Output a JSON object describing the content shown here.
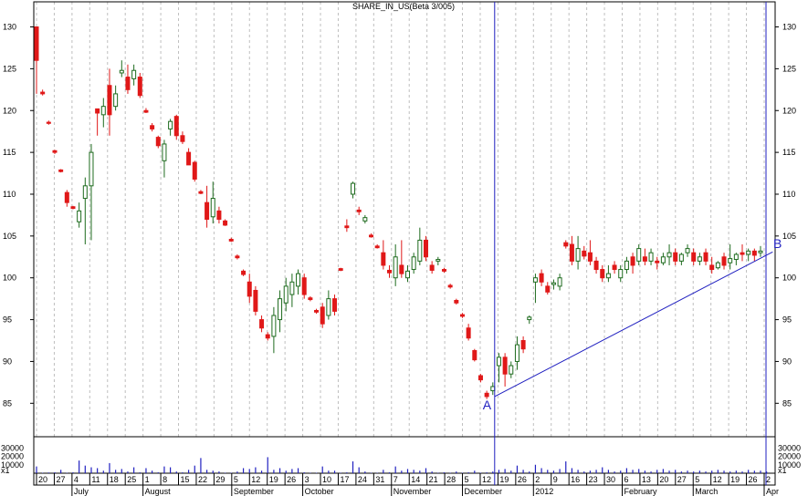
{
  "chart_data": {
    "type": "candlestick",
    "title": "SHARE_IN_US(Beta 3/005)",
    "colors": {
      "up": "#1e6b1e",
      "down": "#e01818",
      "grid": "#bfbfbf",
      "markers": "#2020c0",
      "volume": "#2020c0"
    },
    "price_ticks": [
      85,
      90,
      95,
      100,
      105,
      110,
      115,
      120,
      125,
      130
    ],
    "volume_ticks": [
      "30000",
      "20000",
      "10000",
      "x1"
    ],
    "ylim": [
      81,
      133
    ],
    "x_day_labels": [
      "20",
      "27",
      "4",
      "11",
      "18",
      "25",
      "1",
      "8",
      "15",
      "22",
      "29",
      "5",
      "12",
      "19",
      "26",
      "3",
      "10",
      "17",
      "24",
      "31",
      "7",
      "14",
      "21",
      "28",
      "5",
      "12",
      "19",
      "26",
      "2",
      "9",
      "16",
      "23",
      "30",
      "6",
      "13",
      "20",
      "27",
      "5",
      "12",
      "19",
      "26",
      "2"
    ],
    "x_month_labels": [
      "July",
      "August",
      "September",
      "October",
      "November",
      "December",
      "2012",
      "February",
      "March",
      "Apr"
    ],
    "markers": [
      {
        "label": "A"
      },
      {
        "label": "B"
      }
    ],
    "candles": [
      [
        130.0,
        122.0,
        130.0,
        126.0
      ],
      [
        122.5,
        121.8,
        122.2,
        122.0
      ],
      [
        118.8,
        118.3,
        118.6,
        118.5
      ],
      [
        115.3,
        114.8,
        115.2,
        115.0
      ],
      [
        113.0,
        112.6,
        112.9,
        112.7
      ],
      [
        110.5,
        108.5,
        110.2,
        109.0
      ],
      [
        108.6,
        108.2,
        108.5,
        108.3
      ],
      [
        109.0,
        106.0,
        106.7,
        108.0
      ],
      [
        112.0,
        104.0,
        109.5,
        111.0
      ],
      [
        116.0,
        104.5,
        111.0,
        115.0
      ],
      [
        120.0,
        117.0,
        120.2,
        119.7
      ],
      [
        121.5,
        118.0,
        119.5,
        120.5
      ],
      [
        125.0,
        117.0,
        123.0,
        119.5
      ],
      [
        123.0,
        120.0,
        120.5,
        122.0
      ],
      [
        126.0,
        124.0,
        124.5,
        124.8
      ],
      [
        125.5,
        122.0,
        124.0,
        122.5
      ],
      [
        125.5,
        123.0,
        123.8,
        124.8
      ],
      [
        124.5,
        121.5,
        124.0,
        121.8
      ],
      [
        120.3,
        119.7,
        120.0,
        119.8
      ],
      [
        118.5,
        117.5,
        118.2,
        117.8
      ],
      [
        117.0,
        115.5,
        116.8,
        115.8
      ],
      [
        116.5,
        112.0,
        114.0,
        116.0
      ],
      [
        119.0,
        117.0,
        117.8,
        118.7
      ],
      [
        119.5,
        116.5,
        119.3,
        117.0
      ],
      [
        117.5,
        116.0,
        117.0,
        116.3
      ],
      [
        115.5,
        113.5,
        115.0,
        113.5
      ],
      [
        114.0,
        111.5,
        113.8,
        111.8
      ],
      [
        110.5,
        110.0,
        110.3,
        110.1
      ],
      [
        111.0,
        106.0,
        109.0,
        107.0
      ],
      [
        111.5,
        106.5,
        107.3,
        109.5
      ],
      [
        108.5,
        106.5,
        108.0,
        107.0
      ],
      [
        107.0,
        106.2,
        106.8,
        106.3
      ],
      [
        104.8,
        104.3,
        104.6,
        104.4
      ],
      [
        102.8,
        102.2,
        102.6,
        102.4
      ],
      [
        101.0,
        100.2,
        100.8,
        100.4
      ],
      [
        100.5,
        97.0,
        99.5,
        97.8
      ],
      [
        99.0,
        95.5,
        98.5,
        96.0
      ],
      [
        95.5,
        93.5,
        95.0,
        94.0
      ],
      [
        93.5,
        92.5,
        93.2,
        92.8
      ],
      [
        96.5,
        91.0,
        93.0,
        95.5
      ],
      [
        98.5,
        93.5,
        95.0,
        97.5
      ],
      [
        100.0,
        96.0,
        97.0,
        99.0
      ],
      [
        100.5,
        96.5,
        98.0,
        99.5
      ],
      [
        101.0,
        98.0,
        99.0,
        100.5
      ],
      [
        100.5,
        97.5,
        100.0,
        98.0
      ],
      [
        97.8,
        97.2,
        97.6,
        97.4
      ],
      [
        96.3,
        95.7,
        96.1,
        95.9
      ],
      [
        97.0,
        94.0,
        96.5,
        94.5
      ],
      [
        98.5,
        95.0,
        95.5,
        97.5
      ],
      [
        98.0,
        95.5,
        97.5,
        96.0
      ],
      [
        101.2,
        100.8,
        101.1,
        100.9
      ],
      [
        107.0,
        105.5,
        106.2,
        106.0
      ],
      [
        111.5,
        109.5,
        110.0,
        111.3
      ],
      [
        108.5,
        107.5,
        108.1,
        107.9
      ],
      [
        107.5,
        106.5,
        106.8,
        107.2
      ],
      [
        105.3,
        104.8,
        105.1,
        104.9
      ],
      [
        104.0,
        103.5,
        103.8,
        103.6
      ],
      [
        104.5,
        101.0,
        103.0,
        101.5
      ],
      [
        101.5,
        100.0,
        100.9,
        100.6
      ],
      [
        104.0,
        99.0,
        100.0,
        102.5
      ],
      [
        104.5,
        100.0,
        101.5,
        100.5
      ],
      [
        101.5,
        99.5,
        100.0,
        100.8
      ],
      [
        103.0,
        100.5,
        101.0,
        102.5
      ],
      [
        106.0,
        101.5,
        102.0,
        104.5
      ],
      [
        105.0,
        102.0,
        104.5,
        102.5
      ],
      [
        102.0,
        100.5,
        101.5,
        100.9
      ],
      [
        102.5,
        101.5,
        102.0,
        102.2
      ],
      [
        101.2,
        100.6,
        101.0,
        100.8
      ],
      [
        99.3,
        98.7,
        99.1,
        98.9
      ],
      [
        97.5,
        96.8,
        97.3,
        97.0
      ],
      [
        95.8,
        95.2,
        95.6,
        95.4
      ],
      [
        94.5,
        92.5,
        94.0,
        92.8
      ],
      [
        91.5,
        90.0,
        91.3,
        90.2
      ],
      [
        88.5,
        87.5,
        88.3,
        87.8
      ],
      [
        86.5,
        85.5,
        86.2,
        85.8
      ],
      [
        87.5,
        86.0,
        86.5,
        87.0
      ],
      [
        91.0,
        87.5,
        89.5,
        90.5
      ],
      [
        91.0,
        87.0,
        90.5,
        88.5
      ],
      [
        90.0,
        88.0,
        88.5,
        89.5
      ],
      [
        93.0,
        89.0,
        90.0,
        92.0
      ],
      [
        93.0,
        91.0,
        92.5,
        91.5
      ],
      [
        95.5,
        94.5,
        95.0,
        95.3
      ],
      [
        100.5,
        97.0,
        99.5,
        100.0
      ],
      [
        101.0,
        99.0,
        100.5,
        99.5
      ],
      [
        99.5,
        98.0,
        99.0,
        98.3
      ],
      [
        99.8,
        98.6,
        99.2,
        99.4
      ],
      [
        100.5,
        98.5,
        99.0,
        100.0
      ],
      [
        104.5,
        103.5,
        104.2,
        103.8
      ],
      [
        105.0,
        101.5,
        104.0,
        102.0
      ],
      [
        105.0,
        101.0,
        102.0,
        103.5
      ],
      [
        103.8,
        102.2,
        103.2,
        102.6
      ],
      [
        104.5,
        101.5,
        103.0,
        102.0
      ],
      [
        102.5,
        100.5,
        102.0,
        101.0
      ],
      [
        101.5,
        99.5,
        101.0,
        100.0
      ],
      [
        101.5,
        99.5,
        100.0,
        100.5
      ],
      [
        102.0,
        100.5,
        101.5,
        101.0
      ],
      [
        101.5,
        99.5,
        100.0,
        101.0
      ],
      [
        102.5,
        100.5,
        101.0,
        102.0
      ],
      [
        103.0,
        100.5,
        102.5,
        101.5
      ],
      [
        104.0,
        101.5,
        102.0,
        103.5
      ],
      [
        103.5,
        101.5,
        102.5,
        102.0
      ],
      [
        103.5,
        101.5,
        102.0,
        103.0
      ],
      [
        102.5,
        101.0,
        102.0,
        101.8
      ],
      [
        103.0,
        101.5,
        101.8,
        102.5
      ],
      [
        104.0,
        101.5,
        102.5,
        103.0
      ],
      [
        103.5,
        101.5,
        103.0,
        102.0
      ],
      [
        103.0,
        101.5,
        102.0,
        102.8
      ],
      [
        104.0,
        102.5,
        103.0,
        103.5
      ],
      [
        103.5,
        101.5,
        103.0,
        102.0
      ],
      [
        103.0,
        101.5,
        102.0,
        102.5
      ],
      [
        103.5,
        101.5,
        103.0,
        102.0
      ],
      [
        102.5,
        100.5,
        101.5,
        101.0
      ],
      [
        102.0,
        101.0,
        101.2,
        101.8
      ],
      [
        103.0,
        101.0,
        102.5,
        101.5
      ],
      [
        104.0,
        101.0,
        101.8,
        102.3
      ],
      [
        103.0,
        101.5,
        102.2,
        102.8
      ],
      [
        104.0,
        102.0,
        103.0,
        102.8
      ],
      [
        103.5,
        102.0,
        102.8,
        103.2
      ],
      [
        103.5,
        102.0,
        103.2,
        102.7
      ],
      [
        103.8,
        102.5,
        103.0,
        103.2
      ]
    ],
    "volume": [
      8000,
      500,
      800,
      1000,
      4000,
      500,
      1000,
      15000,
      9000,
      7000,
      6000,
      3000,
      12000,
      4000,
      5000,
      2000,
      7000,
      1000,
      6000,
      3000,
      1000,
      8000,
      7000,
      2000,
      1000,
      4000,
      9000,
      18000,
      4000,
      3000,
      2000,
      500,
      500,
      2000,
      6000,
      5000,
      7000,
      3000,
      19000,
      4000,
      6000,
      3000,
      5000,
      6000,
      1000,
      500,
      500,
      8000,
      3000,
      3000,
      500,
      1000,
      14000,
      7000,
      2000,
      500,
      500,
      4000,
      1000,
      8000,
      3000,
      5000,
      4000,
      3000,
      6000,
      2000,
      500,
      1000,
      500,
      2000,
      500,
      1000,
      3000,
      500,
      1000,
      2000,
      4000,
      5000,
      3000,
      9000,
      4000,
      2000,
      10000,
      6000,
      4000,
      3000,
      5000,
      14000,
      6000,
      4000,
      2000,
      3000,
      4000,
      7000,
      4000,
      2000,
      3000,
      6000,
      4000,
      5000,
      3000,
      2000,
      4000,
      5000,
      3000,
      4000,
      2000,
      3000,
      2000,
      3000,
      2000,
      3000,
      4000,
      3000,
      2000,
      3000,
      2000,
      4000,
      3000,
      3000,
      2000
    ]
  }
}
